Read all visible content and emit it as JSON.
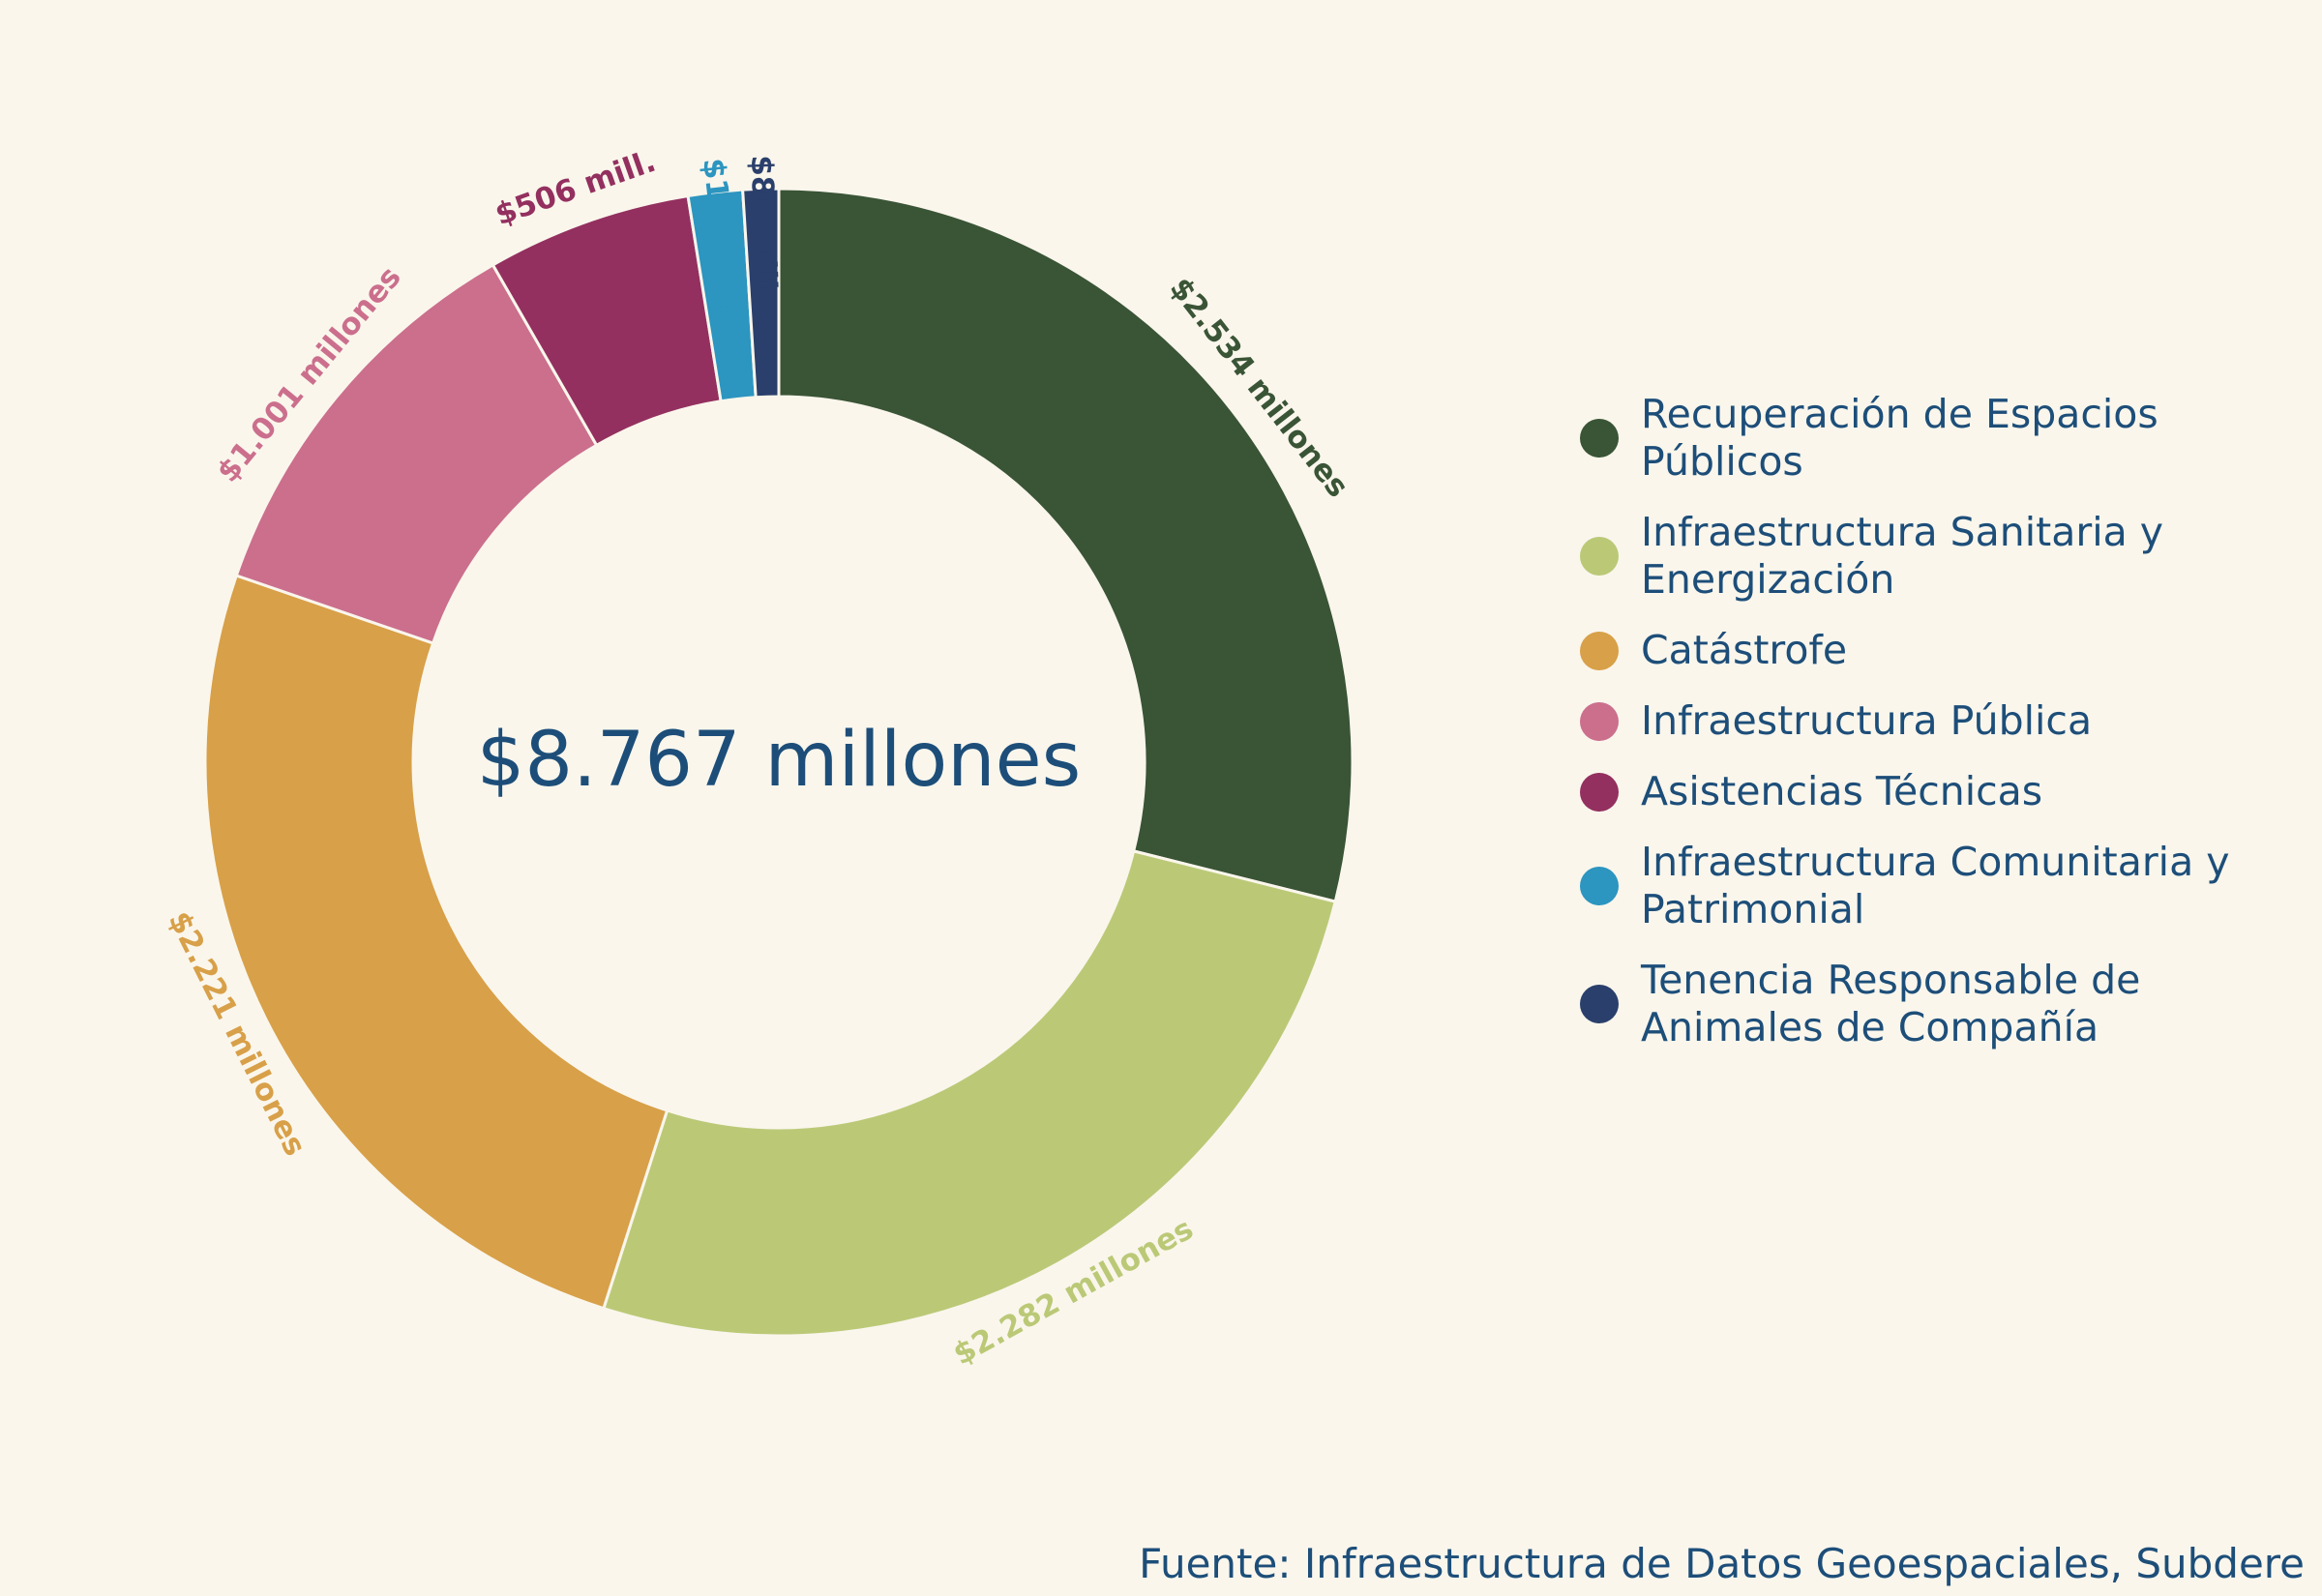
{
  "chart_data": {
    "type": "pie",
    "variant": "donut",
    "center_label": "$8.767 millones",
    "source": "Fuente: Infraestructura de Datos Geoespaciales, Subdere",
    "legend_placement": "right",
    "slices": [
      {
        "name": "Recuperación de Espacios Públicos",
        "legend_lines": [
          "Recuperación de Espacios",
          "Públicos"
        ],
        "value": 2534,
        "label": "$2.534 millones",
        "color": "#3a5436"
      },
      {
        "name": "Infraestructura Sanitaria y Energización",
        "legend_lines": [
          "Infraestructura Sanitaria y",
          "Energización"
        ],
        "value": 2282,
        "label": "$2.282 millones",
        "color": "#bbc977"
      },
      {
        "name": "Catástrofe",
        "legend_lines": [
          "Catástrofe"
        ],
        "value": 2221,
        "label": "$2.221 millones",
        "color": "#d8a048"
      },
      {
        "name": "Infraestructura Pública",
        "legend_lines": [
          "Infraestructura Pública"
        ],
        "value": 1001,
        "label": "$1.001 millones",
        "color": "#cb6f8d"
      },
      {
        "name": "Asistencias Técnicas",
        "legend_lines": [
          "Asistencias Técnicas"
        ],
        "value": 506,
        "label": "$506 mill.",
        "color": "#93305f"
      },
      {
        "name": "Infraestructura Comunitaria y Patrimonial",
        "legend_lines": [
          "Infraestructura Comunitaria y",
          "Patrimonial"
        ],
        "value": 134,
        "label": "$134 mill.",
        "color": "#2c95c0"
      },
      {
        "name": "Tenencia Responsable de Animales de Compañía",
        "legend_lines": [
          "Tenencia Responsable de",
          "Animales de Compañía"
        ],
        "value": 88,
        "label": "$88 mill.",
        "color": "#2a3f6b"
      }
    ]
  }
}
